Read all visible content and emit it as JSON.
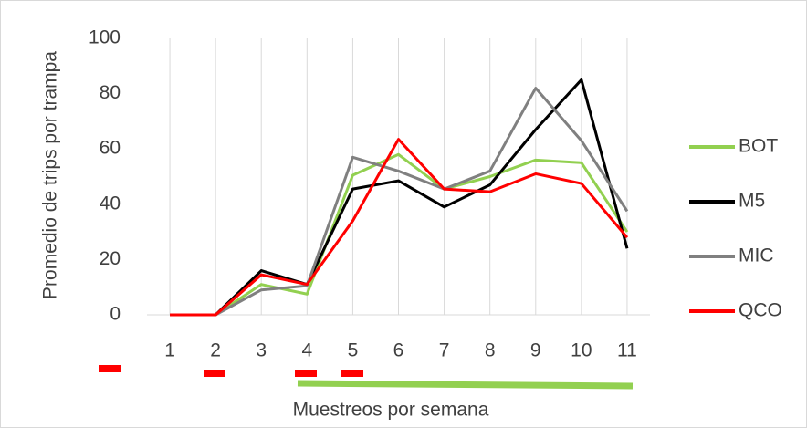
{
  "chart_data": {
    "type": "line",
    "y_label": "Promedio de trips por trampa",
    "x_label": "Muestreos por semana",
    "categories": [
      "1",
      "2",
      "3",
      "4",
      "5",
      "6",
      "7",
      "8",
      "9",
      "10",
      "11"
    ],
    "series": [
      {
        "name": "BOT",
        "color": "#92d050",
        "values": [
          0,
          0,
          11,
          7.5,
          50.5,
          58,
          45.5,
          50,
          56,
          55,
          30
        ]
      },
      {
        "name": "M5",
        "color": "#000000",
        "values": [
          0,
          0,
          16,
          11,
          45.5,
          48.5,
          39,
          47,
          67,
          85,
          24
        ]
      },
      {
        "name": "MIC",
        "color": "#808080",
        "values": [
          0,
          0,
          9,
          10.5,
          57,
          52,
          45.5,
          52,
          82,
          63,
          37.5
        ]
      },
      {
        "name": "QCO",
        "color": "#ff0000",
        "values": [
          0,
          0,
          14.5,
          11,
          34,
          63.5,
          45.5,
          44.5,
          51,
          47.5,
          28
        ]
      }
    ],
    "ylim": [
      0,
      100
    ],
    "yticks": [
      0,
      20,
      40,
      60,
      80,
      100
    ],
    "grid": "x",
    "legend": "right"
  }
}
